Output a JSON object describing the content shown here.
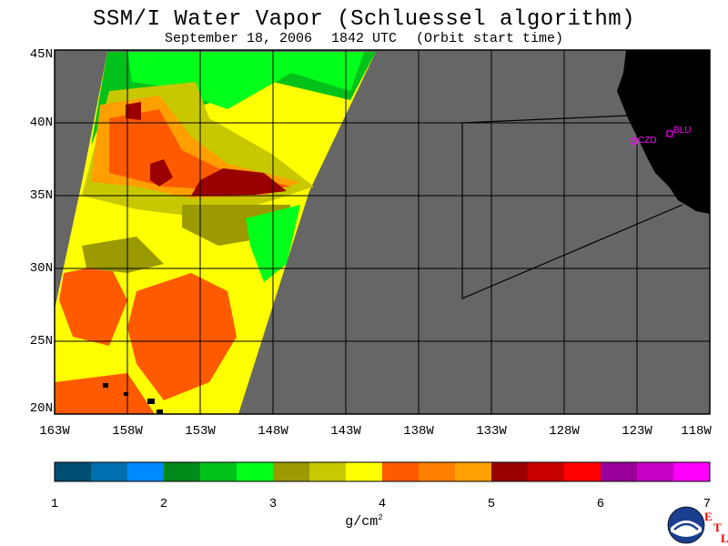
{
  "header": {
    "title": "SSM/I Water Vapor (Schluessel algorithm)",
    "date": "September 18, 2006",
    "time": "1842 UTC",
    "note": "(Orbit start time)"
  },
  "map": {
    "lat_labels": [
      "45N",
      "40N",
      "35N",
      "30N",
      "25N",
      "20N"
    ],
    "lon_labels": [
      "163W",
      "158W",
      "153W",
      "148W",
      "143W",
      "138W",
      "133W",
      "128W",
      "123W",
      "118W"
    ],
    "stations": [
      {
        "id": "CZD"
      },
      {
        "id": "BLU"
      }
    ],
    "colors": {
      "background_gray": "#666666",
      "land": "#000000",
      "station": "#ff00ff"
    }
  },
  "colorbar": {
    "tick_labels": [
      "1",
      "2",
      "3",
      "4",
      "5",
      "6",
      "7"
    ],
    "unit_text": "g/cm",
    "unit_superscript": "2",
    "segments": [
      "#004d73",
      "#006fb0",
      "#0088ff",
      "#008a1a",
      "#00c21a",
      "#00ff1a",
      "#9b9a00",
      "#c8c800",
      "#ffff00",
      "#ff5a00",
      "#ff7f00",
      "#ff9f00",
      "#9a0000",
      "#c80000",
      "#ff0000",
      "#9a009a",
      "#c800c8",
      "#ff00ff"
    ]
  },
  "logo": {
    "name": "NOAA",
    "etl": [
      "E",
      "T",
      "L"
    ]
  }
}
